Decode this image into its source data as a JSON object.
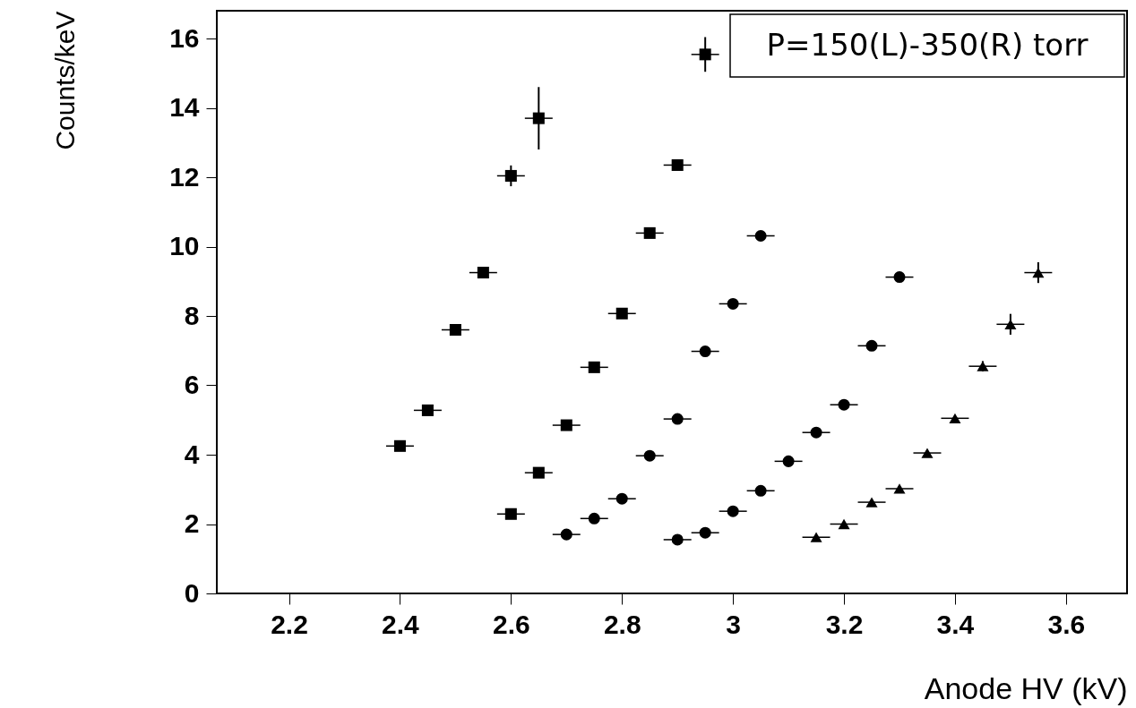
{
  "chart_data": {
    "type": "scatter",
    "xlabel": "Anode HV (kV)",
    "ylabel": "Counts/keV",
    "annotations": [
      "P=150(L)-350(R) torr"
    ],
    "xlim": [
      2.07,
      3.71
    ],
    "xticks": [
      2.2,
      2.4,
      2.6,
      2.8,
      3,
      3.2,
      3.4,
      3.6
    ],
    "ylim": [
      0,
      16.8
    ],
    "yticks": [
      0,
      2,
      4,
      6,
      8,
      10,
      12,
      14,
      16
    ],
    "grid": false,
    "legend": false,
    "series": [
      {
        "color": "#000000",
        "marker": "square",
        "x": [
          2.4,
          2.45,
          2.5,
          2.55,
          2.6,
          2.65
        ],
        "values": [
          4.25,
          5.28,
          7.6,
          9.25,
          12.04,
          13.7
        ],
        "errors": [
          null,
          null,
          null,
          null,
          0.3,
          0.9
        ],
        "xerrors": [
          0.025,
          0.025,
          0.025,
          0.025,
          0.025,
          0.025
        ]
      },
      {
        "color": "#000000",
        "marker": "square",
        "x": [
          2.6,
          2.65,
          2.7,
          2.75,
          2.8,
          2.85,
          2.9,
          2.95
        ],
        "values": [
          2.29,
          3.48,
          4.85,
          6.52,
          8.07,
          10.39,
          12.35,
          15.54
        ],
        "errors": [
          null,
          null,
          null,
          null,
          null,
          null,
          null,
          0.5
        ],
        "xerrors": [
          0.025,
          0.025,
          0.025,
          0.025,
          0.025,
          0.025,
          0.025,
          0.025
        ]
      },
      {
        "color": "#000000",
        "marker": "circle",
        "x": [
          2.7,
          2.75,
          2.8,
          2.85,
          2.9,
          2.95,
          3,
          3.05
        ],
        "values": [
          1.7,
          2.16,
          2.73,
          3.97,
          5.03,
          6.98,
          8.35,
          10.31
        ],
        "xerrors": [
          0.025,
          0.025,
          0.025,
          0.025,
          0.025,
          0.025,
          0.025,
          0.025
        ]
      },
      {
        "color": "#000000",
        "marker": "circle",
        "x": [
          2.9,
          2.95,
          3,
          3.05,
          3.1,
          3.15,
          3.2,
          3.25,
          3.3
        ],
        "values": [
          1.55,
          1.75,
          2.37,
          2.96,
          3.81,
          4.64,
          5.44,
          7.14,
          9.12
        ],
        "xerrors": [
          0.025,
          0.025,
          0.025,
          0.025,
          0.025,
          0.025,
          0.025,
          0.025,
          0.025
        ]
      },
      {
        "color": "#000000",
        "marker": "triangle",
        "x": [
          3.15,
          3.2,
          3.25,
          3.3,
          3.35,
          3.4,
          3.45,
          3.5,
          3.55
        ],
        "values": [
          1.62,
          2.0,
          2.63,
          3.02,
          4.05,
          5.05,
          6.55,
          7.76,
          9.25
        ],
        "errors": [
          null,
          null,
          null,
          null,
          null,
          null,
          0.15,
          0.3,
          0.3
        ],
        "xerrors": [
          0.025,
          0.025,
          0.025,
          0.025,
          0.025,
          0.025,
          0.025,
          0.025,
          0.025
        ]
      }
    ]
  }
}
